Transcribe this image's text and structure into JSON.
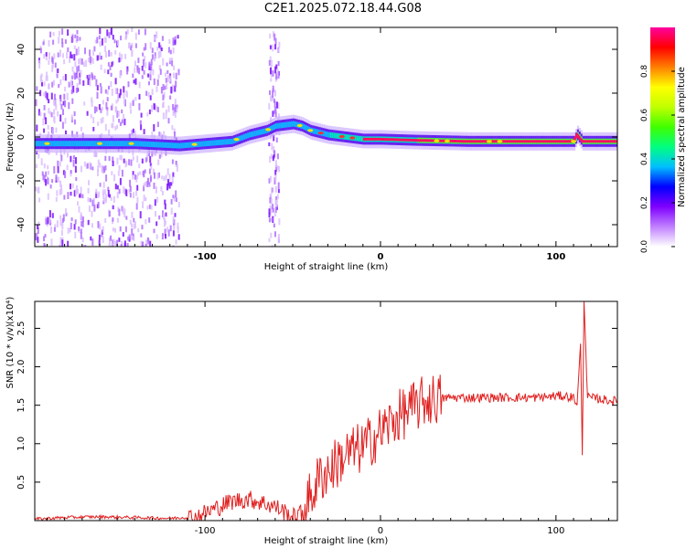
{
  "title": "C2E1.2025.072.18.44.G08",
  "chart_data": [
    {
      "type": "heatmap",
      "title": "C2E1.2025.072.18.44.G08",
      "xlabel": "Height of straight line (km)",
      "ylabel": "Frequency (Hz)",
      "xlim": [
        -197,
        135
      ],
      "ylim": [
        -50,
        50
      ],
      "xticks": [
        -100,
        0,
        100
      ],
      "xtick_labels": [
        "-100",
        "0",
        "100"
      ],
      "yticks": [
        -40,
        -20,
        0,
        20,
        40
      ],
      "ytick_labels": [
        "-40",
        "-20",
        "0",
        "20",
        "40"
      ],
      "colorbar": {
        "label": "Normalized spectral amplitude",
        "range": [
          0,
          1
        ],
        "ticks": [
          0.0,
          0.2,
          0.4,
          0.6,
          0.8
        ],
        "tick_labels": [
          "0.0",
          "0.2",
          "0.4",
          "0.6",
          "0.8"
        ],
        "colors": [
          "#ffffff",
          "#c080ff",
          "#8000ff",
          "#0000ff",
          "#00c0ff",
          "#00ff80",
          "#40ff00",
          "#c0ff00",
          "#ffff00",
          "#ff8000",
          "#ff0000",
          "#ff00a0"
        ]
      },
      "ridge_frequency": {
        "x": [
          -197,
          -170,
          -140,
          -115,
          -100,
          -85,
          -75,
          -65,
          -60,
          -55,
          -50,
          -45,
          -40,
          -30,
          -20,
          -10,
          0,
          20,
          50,
          80,
          100,
          110,
          112,
          115,
          120,
          135
        ],
        "y": [
          -3,
          -3,
          -3,
          -4,
          -3,
          -2,
          1,
          3,
          5,
          5.5,
          6,
          5,
          3,
          1,
          0,
          -1,
          -1,
          -1.5,
          -2,
          -2,
          -2,
          -2,
          1,
          -2,
          -2,
          -2
        ]
      },
      "scatter_bands_x": [
        [
          -197,
          -115
        ],
        [
          -64,
          -58
        ]
      ]
    },
    {
      "type": "line",
      "xlabel": "Height of straight line (km)",
      "ylabel": "SNR (10 * v/v)",
      "y_multiplier": "(x10⁴)",
      "xlim": [
        -197,
        135
      ],
      "ylim": [
        0,
        2.85
      ],
      "xticks": [
        -100,
        0,
        100
      ],
      "xtick_labels": [
        "-100",
        "0",
        "100"
      ],
      "yticks": [
        0.5,
        1.0,
        1.5,
        2.0,
        2.5
      ],
      "ytick_labels": [
        "0.5",
        "1.0",
        "1.5",
        "2.0",
        "2.5"
      ],
      "color": "#e02020",
      "x": [
        -197,
        -180,
        -160,
        -140,
        -120,
        -105,
        -95,
        -85,
        -75,
        -65,
        -60,
        -55,
        -50,
        -45,
        -40,
        -35,
        -30,
        -25,
        -20,
        -15,
        -10,
        -5,
        0,
        5,
        10,
        15,
        20,
        25,
        30,
        40,
        50,
        60,
        70,
        80,
        90,
        100,
        105,
        110,
        112,
        114,
        115,
        116,
        118,
        125,
        135
      ],
      "y": [
        0.02,
        0.04,
        0.05,
        0.04,
        0.03,
        0.05,
        0.15,
        0.25,
        0.28,
        0.22,
        0.18,
        0.12,
        0.04,
        0.1,
        0.3,
        0.55,
        0.65,
        0.75,
        0.85,
        0.9,
        0.95,
        1.05,
        1.15,
        1.25,
        1.35,
        1.42,
        1.48,
        1.55,
        1.58,
        1.6,
        1.6,
        1.6,
        1.6,
        1.6,
        1.6,
        1.62,
        1.62,
        1.6,
        1.5,
        2.3,
        0.85,
        2.85,
        1.6,
        1.58,
        1.55
      ]
    }
  ]
}
